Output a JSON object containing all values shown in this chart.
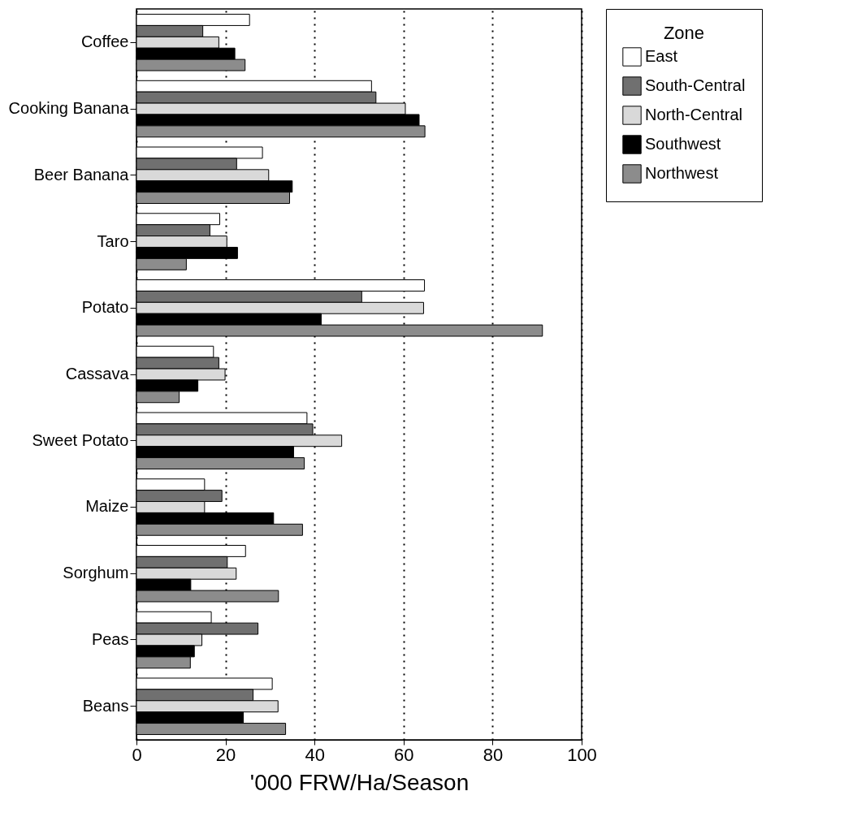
{
  "chart_data": {
    "type": "bar",
    "orientation": "horizontal",
    "xlabel": "'000 FRW/Ha/Season",
    "legend_title": "Zone",
    "legend": "right",
    "grid": "x",
    "categories": [
      "Coffee",
      "Cooking Banana",
      "Beer Banana",
      "Taro",
      "Potato",
      "Cassava",
      "Sweet Potato",
      "Maize",
      "Sorghum",
      "Peas",
      "Beans"
    ],
    "xlim": [
      0,
      100
    ],
    "xticks": [
      0,
      20,
      40,
      60,
      80,
      100
    ],
    "series": [
      {
        "name": "East",
        "color": "#ffffff",
        "values": [
          25.4,
          52.8,
          28.3,
          18.7,
          64.7,
          17.3,
          38.3,
          15.3,
          24.5,
          16.8,
          30.5
        ]
      },
      {
        "name": "South-Central",
        "color": "#707070",
        "values": [
          14.9,
          53.8,
          22.5,
          16.5,
          50.6,
          18.5,
          39.6,
          19.2,
          20.4,
          27.3,
          26.2
        ]
      },
      {
        "name": "North-Central",
        "color": "#d9d9d9",
        "values": [
          18.5,
          60.4,
          29.7,
          20.3,
          64.5,
          19.9,
          46.1,
          15.3,
          22.4,
          14.7,
          31.8
        ]
      },
      {
        "name": "Southwest",
        "color": "#000000",
        "values": [
          22.1,
          63.5,
          35.0,
          22.7,
          41.5,
          13.8,
          35.3,
          30.8,
          12.2,
          13.0,
          24.0
        ]
      },
      {
        "name": "Northwest",
        "color": "#8c8c8c",
        "values": [
          24.4,
          64.8,
          34.4,
          11.2,
          91.2,
          9.6,
          37.7,
          37.3,
          31.9,
          12.1,
          33.5
        ]
      }
    ]
  }
}
